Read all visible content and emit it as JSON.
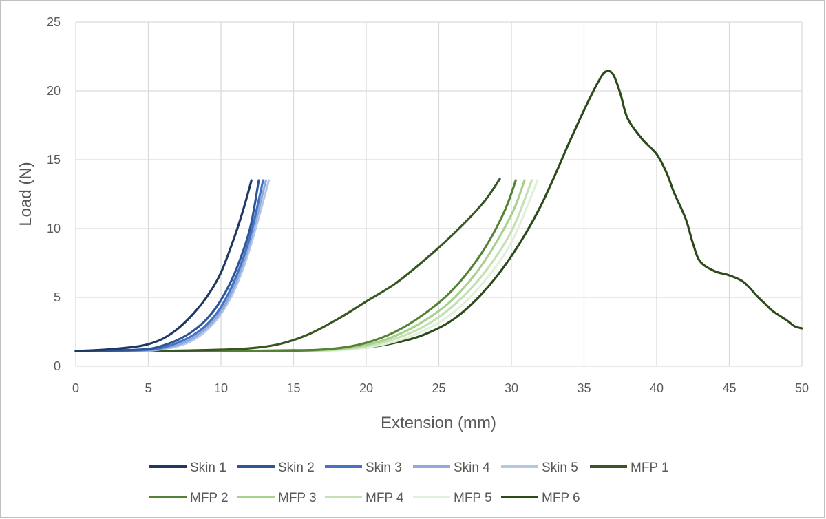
{
  "chart_data": {
    "type": "line",
    "title": "",
    "xlabel": "Extension (mm)",
    "ylabel": "Load (N)",
    "xlim": [
      0,
      50
    ],
    "ylim": [
      0,
      25
    ],
    "xticks": [
      "0",
      "5",
      "10",
      "15",
      "20",
      "25",
      "30",
      "35",
      "40",
      "45",
      "50"
    ],
    "yticks": [
      "0",
      "5",
      "10",
      "15",
      "20",
      "25"
    ],
    "grid": true,
    "legend_position": "bottom",
    "series": [
      {
        "name": "Skin 1",
        "color": "#1f3864",
        "points": [
          [
            0,
            1.1
          ],
          [
            2,
            1.2
          ],
          [
            4,
            1.4
          ],
          [
            5,
            1.6
          ],
          [
            6,
            2.0
          ],
          [
            7,
            2.7
          ],
          [
            8,
            3.7
          ],
          [
            9,
            5.0
          ],
          [
            10,
            6.8
          ],
          [
            11,
            9.6
          ],
          [
            11.6,
            11.6
          ],
          [
            12.1,
            13.5
          ]
        ]
      },
      {
        "name": "Skin 2",
        "color": "#2f5597",
        "points": [
          [
            0,
            1.1
          ],
          [
            3,
            1.15
          ],
          [
            5,
            1.25
          ],
          [
            6,
            1.5
          ],
          [
            7,
            1.9
          ],
          [
            8,
            2.5
          ],
          [
            9,
            3.4
          ],
          [
            10,
            4.8
          ],
          [
            11,
            6.9
          ],
          [
            12,
            10.0
          ],
          [
            12.6,
            13.5
          ]
        ]
      },
      {
        "name": "Skin 3",
        "color": "#4472c4",
        "points": [
          [
            0,
            1.1
          ],
          [
            3,
            1.12
          ],
          [
            5,
            1.2
          ],
          [
            6,
            1.35
          ],
          [
            7,
            1.7
          ],
          [
            8,
            2.2
          ],
          [
            9,
            3.0
          ],
          [
            10,
            4.3
          ],
          [
            11,
            6.4
          ],
          [
            12,
            9.4
          ],
          [
            12.9,
            13.5
          ]
        ]
      },
      {
        "name": "Skin 4",
        "color": "#8faadc",
        "points": [
          [
            0,
            1.1
          ],
          [
            3,
            1.1
          ],
          [
            5,
            1.15
          ],
          [
            6,
            1.3
          ],
          [
            7,
            1.55
          ],
          [
            8,
            2.0
          ],
          [
            9,
            2.8
          ],
          [
            10,
            4.0
          ],
          [
            11,
            6.0
          ],
          [
            12,
            9.0
          ],
          [
            13.1,
            13.5
          ]
        ]
      },
      {
        "name": "Skin 5",
        "color": "#b4c7e7",
        "points": [
          [
            0,
            1.1
          ],
          [
            3,
            1.1
          ],
          [
            5,
            1.12
          ],
          [
            6,
            1.25
          ],
          [
            7,
            1.45
          ],
          [
            8,
            1.85
          ],
          [
            9,
            2.6
          ],
          [
            10,
            3.8
          ],
          [
            11,
            5.7
          ],
          [
            12,
            8.6
          ],
          [
            13.3,
            13.5
          ]
        ]
      },
      {
        "name": "MFP 1",
        "color": "#375623",
        "points": [
          [
            0,
            1.1
          ],
          [
            5,
            1.1
          ],
          [
            10,
            1.2
          ],
          [
            12,
            1.3
          ],
          [
            14,
            1.6
          ],
          [
            16,
            2.3
          ],
          [
            18,
            3.4
          ],
          [
            20,
            4.7
          ],
          [
            22,
            6.0
          ],
          [
            24,
            7.7
          ],
          [
            26,
            9.6
          ],
          [
            28,
            11.8
          ],
          [
            29.2,
            13.6
          ]
        ]
      },
      {
        "name": "MFP 2",
        "color": "#548235",
        "points": [
          [
            0,
            1.1
          ],
          [
            10,
            1.1
          ],
          [
            15,
            1.12
          ],
          [
            18,
            1.3
          ],
          [
            20,
            1.7
          ],
          [
            22,
            2.5
          ],
          [
            24,
            3.8
          ],
          [
            26,
            5.6
          ],
          [
            28,
            8.3
          ],
          [
            29.5,
            11.2
          ],
          [
            30.3,
            13.5
          ]
        ]
      },
      {
        "name": "MFP 3",
        "color": "#a9d18e",
        "points": [
          [
            0,
            1.1
          ],
          [
            10,
            1.1
          ],
          [
            15,
            1.1
          ],
          [
            18,
            1.25
          ],
          [
            20,
            1.55
          ],
          [
            22,
            2.2
          ],
          [
            24,
            3.3
          ],
          [
            26,
            4.9
          ],
          [
            28,
            7.4
          ],
          [
            30,
            11.0
          ],
          [
            30.9,
            13.5
          ]
        ]
      },
      {
        "name": "MFP 4",
        "color": "#c5e0b4",
        "points": [
          [
            0,
            1.1
          ],
          [
            10,
            1.1
          ],
          [
            15,
            1.1
          ],
          [
            18,
            1.2
          ],
          [
            20,
            1.45
          ],
          [
            22,
            2.0
          ],
          [
            24,
            2.9
          ],
          [
            26,
            4.4
          ],
          [
            28,
            6.6
          ],
          [
            30,
            9.8
          ],
          [
            31.4,
            13.5
          ]
        ]
      },
      {
        "name": "MFP 5",
        "color": "#e2f0d9",
        "points": [
          [
            0,
            1.1
          ],
          [
            10,
            1.1
          ],
          [
            15,
            1.1
          ],
          [
            18,
            1.15
          ],
          [
            20,
            1.35
          ],
          [
            22,
            1.8
          ],
          [
            24,
            2.6
          ],
          [
            26,
            3.9
          ],
          [
            28,
            6.0
          ],
          [
            30,
            9.0
          ],
          [
            31.8,
            13.5
          ]
        ]
      },
      {
        "name": "MFP 6",
        "color": "#2d4a1a",
        "points": [
          [
            0,
            1.1
          ],
          [
            10,
            1.1
          ],
          [
            15,
            1.15
          ],
          [
            18,
            1.2
          ],
          [
            20,
            1.35
          ],
          [
            22,
            1.7
          ],
          [
            24,
            2.3
          ],
          [
            26,
            3.4
          ],
          [
            28,
            5.3
          ],
          [
            30,
            8.0
          ],
          [
            32,
            11.6
          ],
          [
            34,
            16.3
          ],
          [
            35,
            18.6
          ],
          [
            36,
            20.7
          ],
          [
            36.5,
            21.4
          ],
          [
            37,
            21.2
          ],
          [
            37.5,
            19.8
          ],
          [
            38,
            18.0
          ],
          [
            39,
            16.5
          ],
          [
            40,
            15.4
          ],
          [
            40.7,
            14.0
          ],
          [
            41.2,
            12.6
          ],
          [
            42,
            10.7
          ],
          [
            42.5,
            8.9
          ],
          [
            43,
            7.6
          ],
          [
            44,
            6.9
          ],
          [
            45,
            6.6
          ],
          [
            46,
            6.1
          ],
          [
            47,
            5.0
          ],
          [
            47.5,
            4.5
          ],
          [
            48,
            4.0
          ],
          [
            49,
            3.3
          ],
          [
            49.5,
            2.9
          ],
          [
            50,
            2.75
          ]
        ]
      }
    ]
  }
}
